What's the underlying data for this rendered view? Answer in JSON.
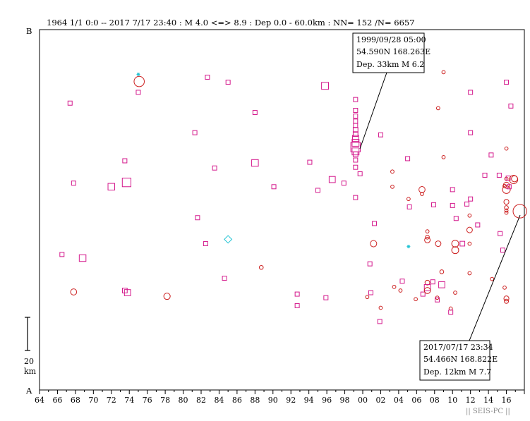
{
  "header": {
    "text": "1964 1/1 0:0 -- 2017 7/17 23:40  : M 4.0 <=> 8.9   :  Dep 0.0 - 60.0km :  NN= 152 /N= 6657"
  },
  "axis_labels": {
    "b": "B",
    "a": "A"
  },
  "scale_bar": {
    "value": "20",
    "unit": "km"
  },
  "caption": "|| SEIS-PC ||",
  "callouts": [
    {
      "date": "1999/09/28 05:00",
      "coords": "54.590N  168.263E",
      "dep_mag": "Dep. 33km    M 6.2"
    },
    {
      "date": "2017/07/17 23:34",
      "coords": "54.466N  168.822E",
      "dep_mag": "Dep. 12km    M 7.7"
    }
  ],
  "chart_data": {
    "type": "scatter",
    "xlim": [
      1964,
      2018
    ],
    "x_tick_labels": [
      "64",
      "66",
      "68",
      "70",
      "72",
      "74",
      "76",
      "78",
      "80",
      "82",
      "84",
      "86",
      "88",
      "90",
      "92",
      "94",
      "96",
      "98",
      "00",
      "02",
      "04",
      "06",
      "08",
      "10",
      "12",
      "14",
      "16"
    ],
    "ylim": [
      0,
      100
    ],
    "y_unit": "position along A-B profile (%)",
    "colors": {
      "shallow": "#d4188c",
      "intermediate": "#cc1f1f",
      "special": "#22c4d4"
    },
    "marker_types": {
      "square": "shallow depth",
      "circle": "deeper depth",
      "diamond": "other",
      "star": "other"
    },
    "points": [
      {
        "x": 1967.4,
        "y": 79.6,
        "m": 4.3,
        "s": "square"
      },
      {
        "x": 1967.8,
        "y": 57.4,
        "m": 4.3,
        "s": "square"
      },
      {
        "x": 1966.5,
        "y": 37.6,
        "m": 4.3,
        "s": "square"
      },
      {
        "x": 1968.8,
        "y": 36.6,
        "m": 5.2,
        "s": "square"
      },
      {
        "x": 1967.8,
        "y": 27.2,
        "m": 5.0,
        "s": "circle"
      },
      {
        "x": 1972.0,
        "y": 56.4,
        "m": 5.2,
        "s": "square"
      },
      {
        "x": 1973.5,
        "y": 63.6,
        "m": 4.3,
        "s": "square"
      },
      {
        "x": 1973.7,
        "y": 57.6,
        "m": 5.9,
        "s": "square"
      },
      {
        "x": 1973.5,
        "y": 27.6,
        "m": 4.5,
        "s": "square"
      },
      {
        "x": 1973.8,
        "y": 27.0,
        "m": 5.0,
        "s": "square"
      },
      {
        "x": 1975.0,
        "y": 87.6,
        "m": 4.0,
        "s": "star"
      },
      {
        "x": 1975.1,
        "y": 85.6,
        "m": 6.5,
        "s": "circle"
      },
      {
        "x": 1975.0,
        "y": 82.6,
        "m": 4.3,
        "s": "square"
      },
      {
        "x": 1978.2,
        "y": 26.0,
        "m": 5.1,
        "s": "circle"
      },
      {
        "x": 1981.3,
        "y": 71.4,
        "m": 4.3,
        "s": "square"
      },
      {
        "x": 1981.6,
        "y": 47.8,
        "m": 4.3,
        "s": "square"
      },
      {
        "x": 1982.5,
        "y": 40.6,
        "m": 4.3,
        "s": "square"
      },
      {
        "x": 1982.7,
        "y": 86.8,
        "m": 4.3,
        "s": "square"
      },
      {
        "x": 1983.5,
        "y": 61.6,
        "m": 4.3,
        "s": "square"
      },
      {
        "x": 1984.6,
        "y": 31.0,
        "m": 4.3,
        "s": "square"
      },
      {
        "x": 1985.0,
        "y": 85.4,
        "m": 4.3,
        "s": "square"
      },
      {
        "x": 1985.0,
        "y": 41.8,
        "m": 5.5,
        "s": "diamond"
      },
      {
        "x": 1988.0,
        "y": 77.0,
        "m": 4.3,
        "s": "square"
      },
      {
        "x": 1988.0,
        "y": 63.0,
        "m": 5.2,
        "s": "square"
      },
      {
        "x": 1988.7,
        "y": 34.0,
        "m": 4.2,
        "s": "circle"
      },
      {
        "x": 1990.1,
        "y": 56.4,
        "m": 4.3,
        "s": "square"
      },
      {
        "x": 1992.7,
        "y": 26.6,
        "m": 4.3,
        "s": "square"
      },
      {
        "x": 1992.7,
        "y": 23.4,
        "m": 4.3,
        "s": "square"
      },
      {
        "x": 1994.1,
        "y": 63.2,
        "m": 4.3,
        "s": "square"
      },
      {
        "x": 1995.0,
        "y": 55.4,
        "m": 4.3,
        "s": "square"
      },
      {
        "x": 1995.8,
        "y": 84.4,
        "m": 5.3,
        "s": "square"
      },
      {
        "x": 1995.9,
        "y": 25.6,
        "m": 4.3,
        "s": "square"
      },
      {
        "x": 1996.6,
        "y": 58.4,
        "m": 5.0,
        "s": "square"
      },
      {
        "x": 1997.9,
        "y": 57.4,
        "m": 4.3,
        "s": "square"
      },
      {
        "x": 1999.2,
        "y": 80.6,
        "m": 4.3,
        "s": "square"
      },
      {
        "x": 1999.2,
        "y": 77.6,
        "m": 4.3,
        "s": "square"
      },
      {
        "x": 1999.2,
        "y": 76.0,
        "m": 4.3,
        "s": "square"
      },
      {
        "x": 1999.2,
        "y": 74.6,
        "m": 4.3,
        "s": "square"
      },
      {
        "x": 1999.2,
        "y": 73.4,
        "m": 4.3,
        "s": "square"
      },
      {
        "x": 1999.2,
        "y": 72.2,
        "m": 4.5,
        "s": "square"
      },
      {
        "x": 1999.2,
        "y": 71.0,
        "m": 4.5,
        "s": "square"
      },
      {
        "x": 1999.2,
        "y": 69.8,
        "m": 5.0,
        "s": "square"
      },
      {
        "x": 1999.2,
        "y": 68.6,
        "m": 5.3,
        "s": "square"
      },
      {
        "x": 1999.2,
        "y": 67.4,
        "m": 6.2,
        "s": "square"
      },
      {
        "x": 1999.2,
        "y": 66.2,
        "m": 5.3,
        "s": "square"
      },
      {
        "x": 1999.2,
        "y": 65.4,
        "m": 4.5,
        "s": "square"
      },
      {
        "x": 1999.2,
        "y": 63.8,
        "m": 4.3,
        "s": "square"
      },
      {
        "x": 1999.2,
        "y": 61.8,
        "m": 4.3,
        "s": "square"
      },
      {
        "x": 1999.2,
        "y": 53.4,
        "m": 4.3,
        "s": "square"
      },
      {
        "x": 1999.7,
        "y": 60.0,
        "m": 4.3,
        "s": "square"
      },
      {
        "x": 2000.8,
        "y": 35.0,
        "m": 4.3,
        "s": "square"
      },
      {
        "x": 2000.9,
        "y": 27.0,
        "m": 4.3,
        "s": "square"
      },
      {
        "x": 2001.2,
        "y": 40.6,
        "m": 5.1,
        "s": "circle"
      },
      {
        "x": 2001.3,
        "y": 46.2,
        "m": 4.3,
        "s": "square"
      },
      {
        "x": 2000.5,
        "y": 25.8,
        "m": 4.0,
        "s": "circle"
      },
      {
        "x": 2002.0,
        "y": 22.8,
        "m": 4.0,
        "s": "circle"
      },
      {
        "x": 2001.9,
        "y": 19.0,
        "m": 4.3,
        "s": "square"
      },
      {
        "x": 2002.0,
        "y": 70.8,
        "m": 4.3,
        "s": "square"
      },
      {
        "x": 2003.3,
        "y": 60.6,
        "m": 4.0,
        "s": "circle"
      },
      {
        "x": 2003.3,
        "y": 56.4,
        "m": 4.0,
        "s": "circle"
      },
      {
        "x": 2003.5,
        "y": 28.6,
        "m": 4.0,
        "s": "circle"
      },
      {
        "x": 2004.2,
        "y": 27.6,
        "m": 4.0,
        "s": "circle"
      },
      {
        "x": 2004.4,
        "y": 30.2,
        "m": 4.3,
        "s": "square"
      },
      {
        "x": 2005.0,
        "y": 64.2,
        "m": 4.3,
        "s": "square"
      },
      {
        "x": 2005.1,
        "y": 53.0,
        "m": 4.0,
        "s": "circle"
      },
      {
        "x": 2005.2,
        "y": 50.8,
        "m": 4.3,
        "s": "square"
      },
      {
        "x": 2005.1,
        "y": 39.8,
        "m": 4.0,
        "s": "star"
      },
      {
        "x": 2005.9,
        "y": 25.2,
        "m": 4.0,
        "s": "circle"
      },
      {
        "x": 2006.6,
        "y": 55.6,
        "m": 5.0,
        "s": "circle"
      },
      {
        "x": 2006.6,
        "y": 54.4,
        "m": 4.0,
        "s": "circle"
      },
      {
        "x": 2006.7,
        "y": 26.6,
        "m": 4.3,
        "s": "square"
      },
      {
        "x": 2007.2,
        "y": 44.0,
        "m": 4.0,
        "s": "circle"
      },
      {
        "x": 2007.2,
        "y": 42.4,
        "m": 4.2,
        "s": "circle"
      },
      {
        "x": 2007.2,
        "y": 41.6,
        "m": 4.8,
        "s": "circle"
      },
      {
        "x": 2007.2,
        "y": 29.8,
        "m": 4.5,
        "s": "circle"
      },
      {
        "x": 2007.2,
        "y": 28.4,
        "m": 5.0,
        "s": "square"
      },
      {
        "x": 2007.2,
        "y": 27.6,
        "m": 5.0,
        "s": "circle"
      },
      {
        "x": 2007.9,
        "y": 51.4,
        "m": 4.3,
        "s": "square"
      },
      {
        "x": 2007.8,
        "y": 30.0,
        "m": 4.3,
        "s": "square"
      },
      {
        "x": 2008.3,
        "y": 25.6,
        "m": 4.0,
        "s": "circle"
      },
      {
        "x": 2008.3,
        "y": 25.0,
        "m": 4.3,
        "s": "square"
      },
      {
        "x": 2008.4,
        "y": 40.6,
        "m": 4.8,
        "s": "circle"
      },
      {
        "x": 2008.4,
        "y": 78.2,
        "m": 4.0,
        "s": "circle"
      },
      {
        "x": 2008.8,
        "y": 32.8,
        "m": 4.2,
        "s": "circle"
      },
      {
        "x": 2008.8,
        "y": 29.2,
        "m": 5.0,
        "s": "square"
      },
      {
        "x": 2009.0,
        "y": 88.2,
        "m": 4.0,
        "s": "circle"
      },
      {
        "x": 2009.0,
        "y": 64.6,
        "m": 4.0,
        "s": "circle"
      },
      {
        "x": 2009.8,
        "y": 22.6,
        "m": 4.0,
        "s": "circle"
      },
      {
        "x": 2009.8,
        "y": 21.6,
        "m": 4.3,
        "s": "square"
      },
      {
        "x": 2010.0,
        "y": 55.6,
        "m": 4.3,
        "s": "square"
      },
      {
        "x": 2010.0,
        "y": 51.2,
        "m": 4.3,
        "s": "square"
      },
      {
        "x": 2010.3,
        "y": 27.0,
        "m": 4.0,
        "s": "circle"
      },
      {
        "x": 2010.3,
        "y": 40.6,
        "m": 5.3,
        "s": "circle"
      },
      {
        "x": 2010.3,
        "y": 38.8,
        "m": 5.3,
        "s": "circle"
      },
      {
        "x": 2010.4,
        "y": 47.6,
        "m": 4.3,
        "s": "square"
      },
      {
        "x": 2011.1,
        "y": 40.6,
        "m": 4.5,
        "s": "square"
      },
      {
        "x": 2011.6,
        "y": 51.6,
        "m": 4.3,
        "s": "square"
      },
      {
        "x": 2011.9,
        "y": 48.4,
        "m": 4.0,
        "s": "circle"
      },
      {
        "x": 2011.9,
        "y": 44.4,
        "m": 4.8,
        "s": "circle"
      },
      {
        "x": 2011.9,
        "y": 40.6,
        "m": 4.0,
        "s": "circle"
      },
      {
        "x": 2011.9,
        "y": 32.4,
        "m": 4.0,
        "s": "circle"
      },
      {
        "x": 2012.0,
        "y": 71.4,
        "m": 4.3,
        "s": "square"
      },
      {
        "x": 2012.0,
        "y": 82.6,
        "m": 4.3,
        "s": "square"
      },
      {
        "x": 2012.0,
        "y": 53.0,
        "m": 4.3,
        "s": "square"
      },
      {
        "x": 2012.8,
        "y": 45.8,
        "m": 4.3,
        "s": "square"
      },
      {
        "x": 2013.6,
        "y": 59.6,
        "m": 4.3,
        "s": "square"
      },
      {
        "x": 2014.3,
        "y": 65.2,
        "m": 4.3,
        "s": "square"
      },
      {
        "x": 2014.4,
        "y": 30.8,
        "m": 4.0,
        "s": "circle"
      },
      {
        "x": 2015.2,
        "y": 59.6,
        "m": 4.3,
        "s": "square"
      },
      {
        "x": 2015.3,
        "y": 43.4,
        "m": 4.3,
        "s": "square"
      },
      {
        "x": 2015.6,
        "y": 38.8,
        "m": 4.3,
        "s": "square"
      },
      {
        "x": 2015.8,
        "y": 56.6,
        "m": 4.0,
        "s": "circle"
      },
      {
        "x": 2015.8,
        "y": 28.4,
        "m": 4.0,
        "s": "circle"
      },
      {
        "x": 2016.0,
        "y": 85.4,
        "m": 4.3,
        "s": "square"
      },
      {
        "x": 2016.0,
        "y": 67.0,
        "m": 4.0,
        "s": "circle"
      },
      {
        "x": 2016.0,
        "y": 58.6,
        "m": 4.0,
        "s": "circle"
      },
      {
        "x": 2016.0,
        "y": 56.8,
        "m": 5.0,
        "s": "circle"
      },
      {
        "x": 2016.0,
        "y": 55.6,
        "m": 5.6,
        "s": "circle"
      },
      {
        "x": 2016.0,
        "y": 52.2,
        "m": 4.6,
        "s": "circle"
      },
      {
        "x": 2016.0,
        "y": 50.6,
        "m": 4.2,
        "s": "circle"
      },
      {
        "x": 2016.0,
        "y": 49.8,
        "m": 4.0,
        "s": "circle"
      },
      {
        "x": 2016.0,
        "y": 49.2,
        "m": 4.0,
        "s": "circle"
      },
      {
        "x": 2016.0,
        "y": 25.4,
        "m": 4.6,
        "s": "circle"
      },
      {
        "x": 2016.0,
        "y": 24.6,
        "m": 4.3,
        "s": "circle"
      },
      {
        "x": 2016.2,
        "y": 58.8,
        "m": 4.3,
        "s": "square"
      },
      {
        "x": 2016.3,
        "y": 56.4,
        "m": 4.3,
        "s": "square"
      },
      {
        "x": 2016.5,
        "y": 78.8,
        "m": 4.3,
        "s": "square"
      },
      {
        "x": 2016.8,
        "y": 58.4,
        "m": 5.8,
        "s": "circle"
      },
      {
        "x": 2016.9,
        "y": 58.6,
        "m": 5.0,
        "s": "circle"
      },
      {
        "x": 2017.5,
        "y": 49.6,
        "m": 7.7,
        "s": "circle"
      }
    ]
  }
}
